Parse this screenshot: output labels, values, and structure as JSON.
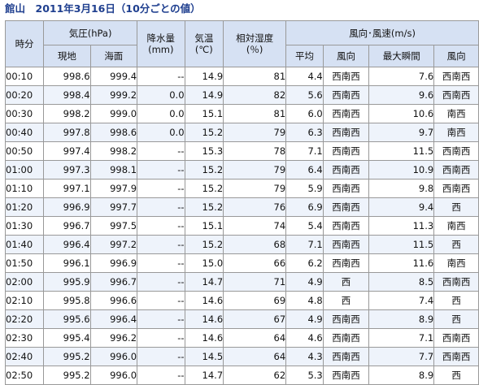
{
  "title": "館山　2011年3月16日（10分ごとの値）",
  "headers": {
    "time": "時分",
    "pressure": "気圧(hPa)",
    "pressure_station": "現地",
    "pressure_sea": "海面",
    "precip": [
      "降水量",
      "(mm)"
    ],
    "temp": [
      "気温",
      "(℃)"
    ],
    "humidity": [
      "相対湿度",
      "(％)"
    ],
    "wind": "風向･風速(m/s)",
    "wind_avg": "平均",
    "wind_dir": "風向",
    "gust": "最大瞬間",
    "gust_dir": "風向"
  },
  "rows": [
    {
      "time": "00:10",
      "p_station": "998.6",
      "p_sea": "999.4",
      "precip": "--",
      "temp": "14.9",
      "humidity": "81",
      "wind_avg": "4.4",
      "wind_dir": "西南西",
      "gust": "7.6",
      "gust_dir": "西南西"
    },
    {
      "time": "00:20",
      "p_station": "998.4",
      "p_sea": "999.2",
      "precip": "0.0",
      "temp": "14.9",
      "humidity": "82",
      "wind_avg": "5.6",
      "wind_dir": "西南西",
      "gust": "9.6",
      "gust_dir": "西南西"
    },
    {
      "time": "00:30",
      "p_station": "998.2",
      "p_sea": "999.0",
      "precip": "0.0",
      "temp": "15.1",
      "humidity": "81",
      "wind_avg": "6.0",
      "wind_dir": "西南西",
      "gust": "10.6",
      "gust_dir": "南西"
    },
    {
      "time": "00:40",
      "p_station": "997.8",
      "p_sea": "998.6",
      "precip": "0.0",
      "temp": "15.2",
      "humidity": "79",
      "wind_avg": "6.3",
      "wind_dir": "西南西",
      "gust": "9.7",
      "gust_dir": "南西"
    },
    {
      "time": "00:50",
      "p_station": "997.4",
      "p_sea": "998.2",
      "precip": "--",
      "temp": "15.3",
      "humidity": "78",
      "wind_avg": "7.1",
      "wind_dir": "西南西",
      "gust": "11.5",
      "gust_dir": "西南西"
    },
    {
      "time": "01:00",
      "p_station": "997.3",
      "p_sea": "998.1",
      "precip": "--",
      "temp": "15.2",
      "humidity": "79",
      "wind_avg": "6.4",
      "wind_dir": "西南西",
      "gust": "10.9",
      "gust_dir": "西南西"
    },
    {
      "time": "01:10",
      "p_station": "997.1",
      "p_sea": "997.9",
      "precip": "--",
      "temp": "15.2",
      "humidity": "79",
      "wind_avg": "5.9",
      "wind_dir": "西南西",
      "gust": "9.8",
      "gust_dir": "西南西"
    },
    {
      "time": "01:20",
      "p_station": "996.9",
      "p_sea": "997.7",
      "precip": "--",
      "temp": "15.2",
      "humidity": "76",
      "wind_avg": "6.9",
      "wind_dir": "西南西",
      "gust": "9.4",
      "gust_dir": "西"
    },
    {
      "time": "01:30",
      "p_station": "996.7",
      "p_sea": "997.5",
      "precip": "--",
      "temp": "15.1",
      "humidity": "74",
      "wind_avg": "5.4",
      "wind_dir": "西南西",
      "gust": "11.3",
      "gust_dir": "南西"
    },
    {
      "time": "01:40",
      "p_station": "996.4",
      "p_sea": "997.2",
      "precip": "--",
      "temp": "15.2",
      "humidity": "68",
      "wind_avg": "7.1",
      "wind_dir": "西南西",
      "gust": "11.5",
      "gust_dir": "西"
    },
    {
      "time": "01:50",
      "p_station": "996.1",
      "p_sea": "996.9",
      "precip": "--",
      "temp": "15.0",
      "humidity": "66",
      "wind_avg": "6.2",
      "wind_dir": "西南西",
      "gust": "11.6",
      "gust_dir": "南西"
    },
    {
      "time": "02:00",
      "p_station": "995.9",
      "p_sea": "996.7",
      "precip": "--",
      "temp": "14.7",
      "humidity": "71",
      "wind_avg": "4.9",
      "wind_dir": "西",
      "gust": "8.5",
      "gust_dir": "西南西"
    },
    {
      "time": "02:10",
      "p_station": "995.8",
      "p_sea": "996.6",
      "precip": "--",
      "temp": "14.6",
      "humidity": "69",
      "wind_avg": "4.8",
      "wind_dir": "西",
      "gust": "7.4",
      "gust_dir": "西"
    },
    {
      "time": "02:20",
      "p_station": "995.6",
      "p_sea": "996.4",
      "precip": "--",
      "temp": "14.6",
      "humidity": "67",
      "wind_avg": "4.9",
      "wind_dir": "西南西",
      "gust": "8.9",
      "gust_dir": "西"
    },
    {
      "time": "02:30",
      "p_station": "995.4",
      "p_sea": "996.2",
      "precip": "--",
      "temp": "14.6",
      "humidity": "64",
      "wind_avg": "4.6",
      "wind_dir": "西南西",
      "gust": "7.1",
      "gust_dir": "西南西"
    },
    {
      "time": "02:40",
      "p_station": "995.2",
      "p_sea": "996.0",
      "precip": "--",
      "temp": "14.5",
      "humidity": "64",
      "wind_avg": "4.3",
      "wind_dir": "西南西",
      "gust": "7.7",
      "gust_dir": "西南西"
    },
    {
      "time": "02:50",
      "p_station": "995.2",
      "p_sea": "996.0",
      "precip": "--",
      "temp": "14.7",
      "humidity": "62",
      "wind_avg": "5.3",
      "wind_dir": "西南西",
      "gust": "8.9",
      "gust_dir": "西"
    }
  ]
}
